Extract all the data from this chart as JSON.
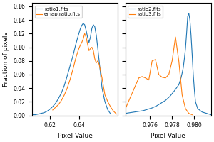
{
  "left_plot": {
    "ratio1_x": [
      0.608,
      0.61,
      0.612,
      0.614,
      0.616,
      0.618,
      0.62,
      0.622,
      0.624,
      0.626,
      0.628,
      0.63,
      0.632,
      0.634,
      0.636,
      0.638,
      0.64,
      0.641,
      0.642,
      0.643,
      0.644,
      0.645,
      0.646,
      0.647,
      0.648,
      0.649,
      0.65,
      0.651,
      0.652,
      0.653,
      0.654,
      0.655,
      0.656,
      0.658,
      0.66,
      0.662
    ],
    "ratio1_y": [
      0.001,
      0.001,
      0.002,
      0.003,
      0.004,
      0.006,
      0.009,
      0.013,
      0.018,
      0.025,
      0.033,
      0.044,
      0.058,
      0.073,
      0.088,
      0.105,
      0.12,
      0.127,
      0.132,
      0.135,
      0.133,
      0.125,
      0.115,
      0.107,
      0.115,
      0.128,
      0.133,
      0.13,
      0.118,
      0.1,
      0.08,
      0.06,
      0.04,
      0.02,
      0.008,
      0.002
    ],
    "emap_x": [
      0.622,
      0.624,
      0.626,
      0.628,
      0.63,
      0.632,
      0.634,
      0.636,
      0.638,
      0.64,
      0.641,
      0.642,
      0.643,
      0.644,
      0.645,
      0.646,
      0.647,
      0.648,
      0.649,
      0.65,
      0.651,
      0.652,
      0.653,
      0.654,
      0.655,
      0.656,
      0.657,
      0.658,
      0.66,
      0.662,
      0.664,
      0.666
    ],
    "emap_y": [
      0.008,
      0.012,
      0.016,
      0.022,
      0.03,
      0.04,
      0.053,
      0.068,
      0.085,
      0.098,
      0.103,
      0.107,
      0.112,
      0.12,
      0.115,
      0.105,
      0.095,
      0.098,
      0.1,
      0.095,
      0.083,
      0.077,
      0.08,
      0.075,
      0.065,
      0.055,
      0.042,
      0.03,
      0.02,
      0.012,
      0.006,
      0.002
    ],
    "xlim": [
      0.608,
      0.667
    ],
    "xticks": [
      0.62,
      0.64
    ],
    "legend": [
      "ratio1.fits",
      "emap.ratio.fits"
    ]
  },
  "right_plot": {
    "ratio2_x": [
      0.9738,
      0.9742,
      0.9746,
      0.975,
      0.9754,
      0.9758,
      0.9762,
      0.9766,
      0.977,
      0.9774,
      0.9778,
      0.9782,
      0.9786,
      0.9788,
      0.9789,
      0.979,
      0.9791,
      0.9792,
      0.9793,
      0.9794,
      0.9795,
      0.9796,
      0.9797,
      0.9798,
      0.9799,
      0.98,
      0.9801,
      0.9803,
      0.9807,
      0.9811,
      0.9815
    ],
    "ratio2_y": [
      0.003,
      0.004,
      0.005,
      0.006,
      0.007,
      0.009,
      0.011,
      0.014,
      0.018,
      0.022,
      0.028,
      0.036,
      0.045,
      0.055,
      0.062,
      0.07,
      0.083,
      0.098,
      0.12,
      0.145,
      0.15,
      0.14,
      0.118,
      0.09,
      0.06,
      0.038,
      0.02,
      0.01,
      0.005,
      0.003,
      0.001
    ],
    "ratio3_x": [
      0.9738,
      0.9742,
      0.9746,
      0.975,
      0.9753,
      0.9756,
      0.9759,
      0.9762,
      0.9765,
      0.9768,
      0.9771,
      0.9774,
      0.9777,
      0.978,
      0.9783,
      0.9786,
      0.9789,
      0.9792,
      0.9795,
      0.9798
    ],
    "ratio3_y": [
      0.01,
      0.025,
      0.04,
      0.055,
      0.057,
      0.055,
      0.052,
      0.08,
      0.082,
      0.06,
      0.056,
      0.055,
      0.06,
      0.08,
      0.115,
      0.08,
      0.03,
      0.01,
      0.003,
      0.001
    ],
    "xlim": [
      0.9738,
      0.9815
    ],
    "xticks": [
      0.976,
      0.978,
      0.98
    ],
    "legend": [
      "ratio2.fits",
      "ratio3.fits"
    ]
  },
  "ylim": [
    0.0,
    0.165
  ],
  "yticks": [
    0.0,
    0.02,
    0.04,
    0.06,
    0.08,
    0.1,
    0.12,
    0.14,
    0.16
  ],
  "ylabel": "Fraction of pixels",
  "xlabel": "Pixel Value",
  "color_blue": "#1f77b4",
  "color_orange": "#ff7f0e",
  "figsize": [
    3.0,
    2.0
  ],
  "dpi": 100
}
